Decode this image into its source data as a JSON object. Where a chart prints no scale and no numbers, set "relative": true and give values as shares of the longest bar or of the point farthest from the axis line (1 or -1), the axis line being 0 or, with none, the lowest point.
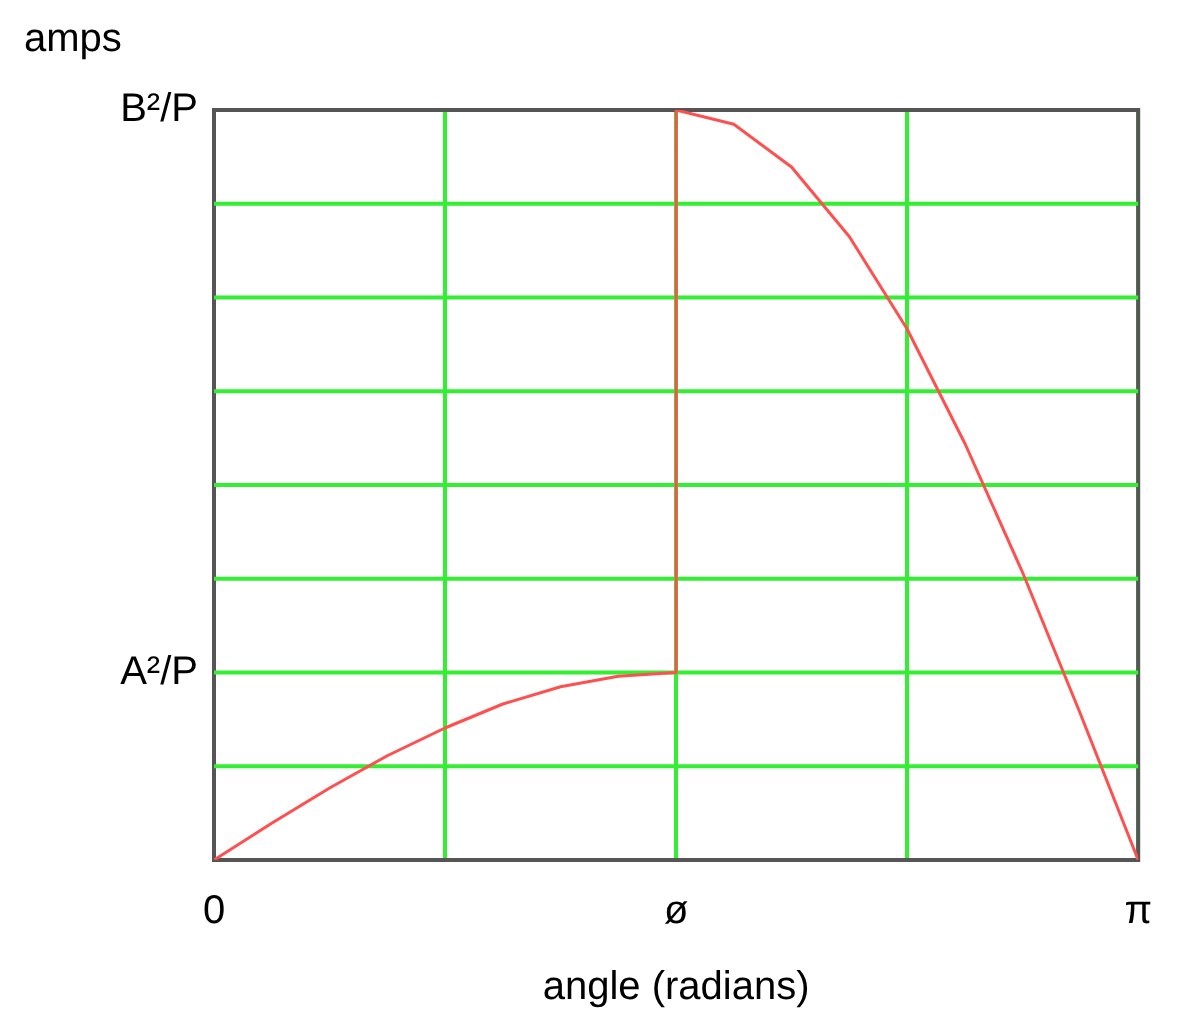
{
  "chart_data": {
    "type": "line",
    "xlabel": "angle (radians)",
    "ylabel": "amps",
    "relative": true,
    "xlim": [
      0,
      3.1416
    ],
    "xticks": [
      0,
      {
        "value": 0.7854,
        "label": null
      },
      {
        "value": 1.5708,
        "label": "ø"
      },
      {
        "value": 2.3562,
        "label": null
      },
      {
        "value": 3.1416,
        "label": "π"
      }
    ],
    "grid": "x",
    "marker": "none",
    "line_style": "solid",
    "ref_lines": [
      {
        "axis": "y",
        "value": 0.125,
        "color": "#33ee33"
      },
      {
        "axis": "y",
        "value": 0.25,
        "label": "A²/P",
        "color": "#33ee33"
      },
      {
        "axis": "y",
        "value": 0.375,
        "color": "#33ee33"
      },
      {
        "axis": "y",
        "value": 0.5,
        "color": "#33ee33"
      },
      {
        "axis": "y",
        "value": 0.625,
        "color": "#33ee33"
      },
      {
        "axis": "y",
        "value": 0.75,
        "color": "#33ee33"
      },
      {
        "axis": "y",
        "value": 0.875,
        "color": "#33ee33"
      }
    ],
    "annotations": [
      "B²/P"
    ],
    "series": [
      {
        "color": "#ff5050",
        "x": [
          0,
          0.196,
          0.393,
          0.589,
          0.785,
          0.982,
          1.178,
          1.374,
          1.571,
          1.571,
          1.767,
          1.963,
          2.16,
          2.356,
          2.553,
          2.749,
          2.945,
          3.1416
        ],
        "values": [
          0,
          0.049,
          0.096,
          0.139,
          0.176,
          0.208,
          0.231,
          0.245,
          0.25,
          1,
          0.981,
          0.924,
          0.831,
          0.708,
          0.555,
          0.383,
          0.195,
          0
        ]
      }
    ]
  }
}
